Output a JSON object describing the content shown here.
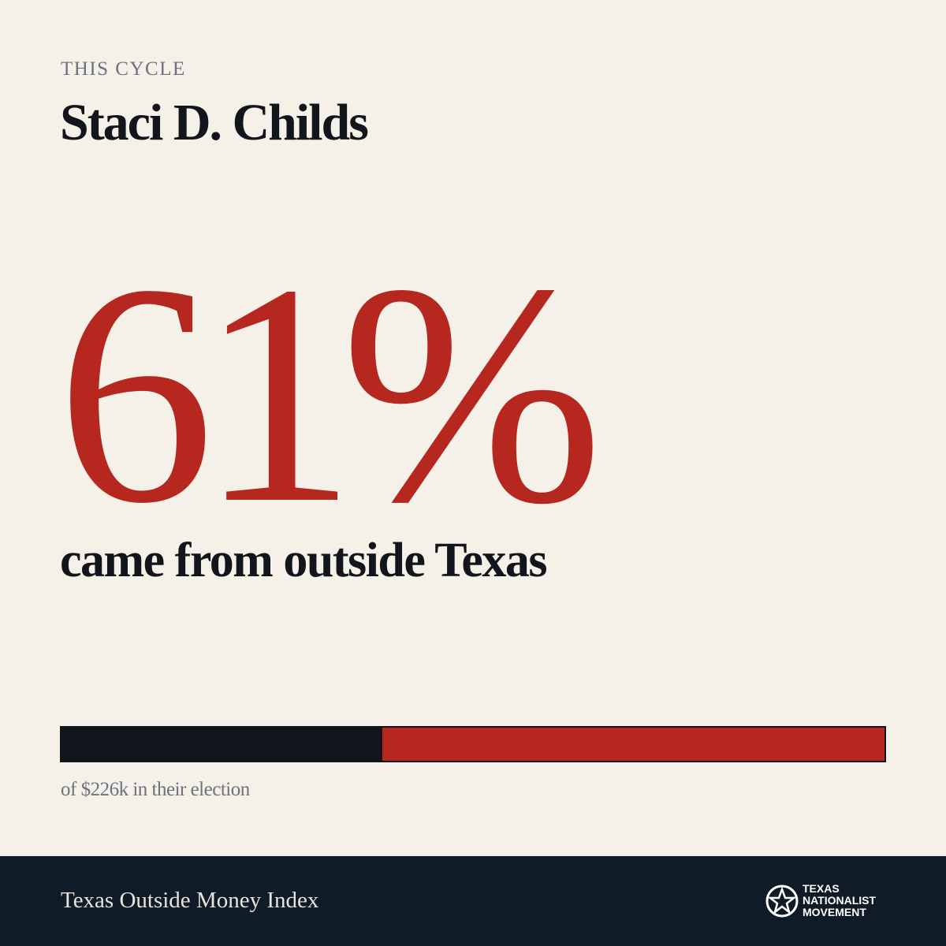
{
  "kicker": "THIS CYCLE",
  "candidate": "Staci D. Childs",
  "share": {
    "value": 61,
    "label": "61%",
    "xlim": [
      0,
      100
    ],
    "color": "#b5271f",
    "track_color": "#12151b"
  },
  "headline": "came from outside Texas",
  "footnote": "of $226k in their election",
  "footer": {
    "title": "Texas Outside Money Index",
    "logo": [
      "TEXAS",
      "NATIONALIST",
      "MOVEMENT"
    ]
  }
}
